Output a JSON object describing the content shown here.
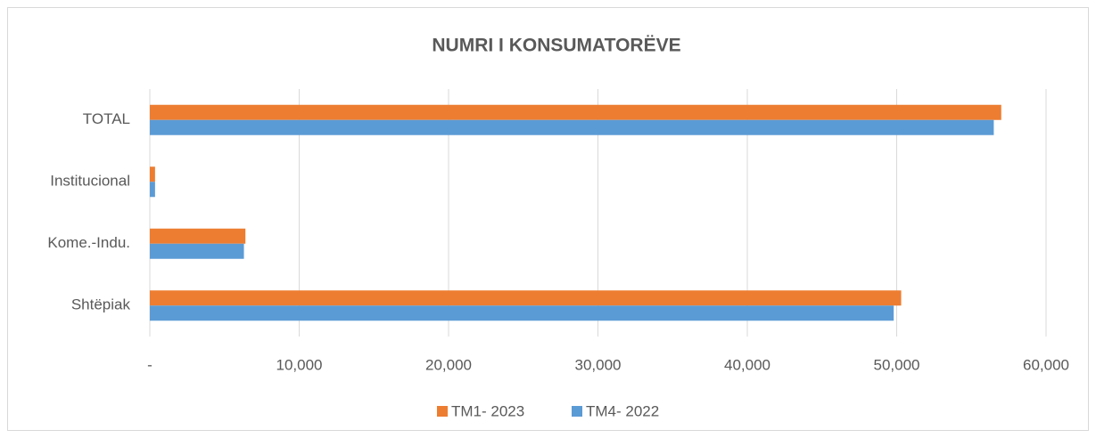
{
  "chart_data": {
    "type": "hbar",
    "title": "NUMRI I KONSUMATORËVE",
    "categories": [
      "Shtëpiak",
      "Kome.-Indu.",
      "Institucional",
      "TOTAL"
    ],
    "series": [
      {
        "name": "TM1- 2023",
        "color": "#ed7d31",
        "values": [
          50300,
          6400,
          350,
          57000
        ]
      },
      {
        "name": "TM4- 2022",
        "color": "#5b9bd5",
        "values": [
          49800,
          6300,
          350,
          56500
        ]
      }
    ],
    "xlim": [
      0,
      60000
    ],
    "xticks": [
      {
        "value": 0,
        "label": "-"
      },
      {
        "value": 10000,
        "label": "10,000"
      },
      {
        "value": 20000,
        "label": "20,000"
      },
      {
        "value": 30000,
        "label": "30,000"
      },
      {
        "value": 40000,
        "label": "40,000"
      },
      {
        "value": 50000,
        "label": "50,000"
      },
      {
        "value": 60000,
        "label": "60,000"
      }
    ],
    "grid": true,
    "legend": "bottom"
  }
}
